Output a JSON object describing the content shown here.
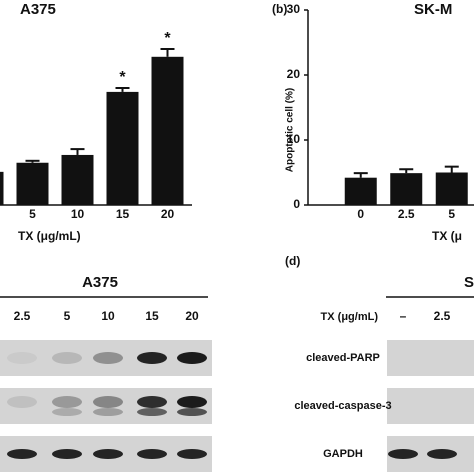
{
  "chart_data": [
    {
      "type": "bar",
      "title": "A375",
      "x_label": "TX (μg/mL)",
      "categories": [
        null,
        "5",
        "10",
        "15",
        "20"
      ],
      "values": [
        5.1,
        6.5,
        7.7,
        17.4,
        22.8
      ],
      "errors": [
        0.4,
        0.3,
        0.9,
        0.6,
        1.2
      ],
      "value_annotations": [
        null,
        null,
        null,
        "*",
        "*"
      ],
      "color": "#111111",
      "ylim": [
        0,
        30
      ]
    },
    {
      "type": "bar",
      "panel_label": "(b)",
      "title": "SK-M",
      "x_label": "TX (μ",
      "y_label": "Apoptotic cell (%)",
      "categories": [
        "0",
        "2.5",
        "5"
      ],
      "values": [
        4.2,
        4.9,
        5.0
      ],
      "errors": [
        0.7,
        0.6,
        0.9
      ],
      "color": "#111111",
      "ylim": [
        0,
        30
      ],
      "yticks": [
        0,
        10,
        20,
        30
      ]
    }
  ],
  "blots": {
    "left": {
      "title": "A375",
      "lanes": [
        "2.5",
        "5",
        "10",
        "15",
        "20"
      ]
    },
    "right": {
      "panel_label": "(d)",
      "title": "S",
      "lane_header": "TX (μg/mL)",
      "lanes": [
        "–",
        "2.5"
      ],
      "rows": [
        "cleaved-PARP",
        "cleaved-caspase-3",
        "GAPDH"
      ]
    }
  }
}
